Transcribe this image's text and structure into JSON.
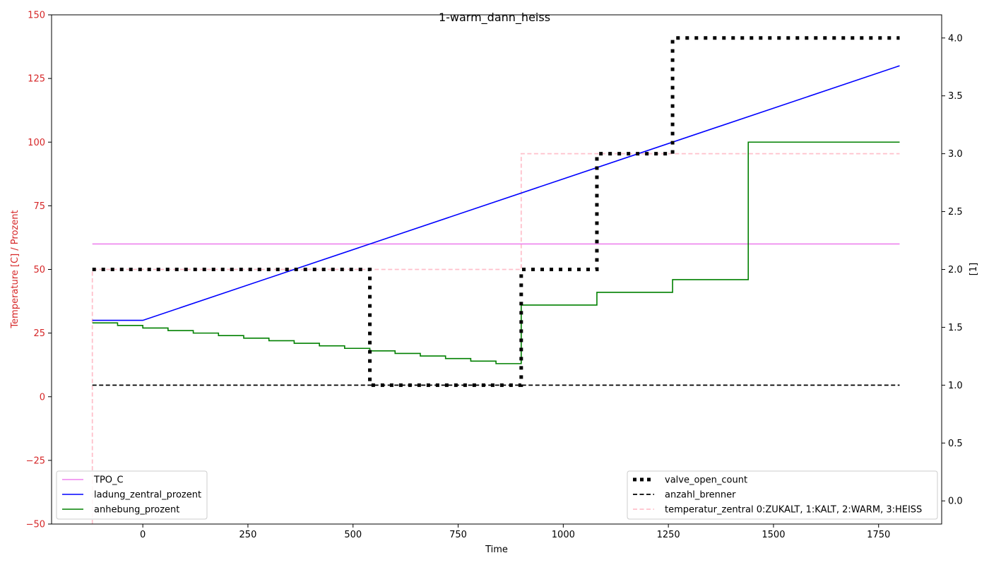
{
  "chart_data": {
    "type": "line",
    "title": "1-warm_dann_heiss",
    "xlabel": "Time",
    "ylabel_left": "Temperature [C] / Prozent",
    "ylabel_right": "[1]",
    "xlim": [
      -217,
      1900
    ],
    "ylim_left": [
      -50,
      150
    ],
    "ylim_right": [
      -0.2,
      4.2
    ],
    "xticks": [
      0,
      250,
      500,
      750,
      1000,
      1250,
      1500,
      1750
    ],
    "yticks_left": [
      -50,
      -25,
      0,
      25,
      50,
      75,
      100,
      125,
      150
    ],
    "yticks_right": [
      0.0,
      0.5,
      1.0,
      1.5,
      2.0,
      2.5,
      3.0,
      3.5,
      4.0
    ],
    "grid": false,
    "left_axis_color": "#d62728",
    "legend_left_placement": "lower left",
    "legend_right_placement": "lower right",
    "series_left": [
      {
        "name": "TPO_C",
        "color": "#ee82ee",
        "style": "solid",
        "x": [
          -120,
          1800
        ],
        "y": [
          60,
          60
        ]
      },
      {
        "name": "ladung_zentral_prozent",
        "color": "#0000ff",
        "style": "solid",
        "x": [
          -120,
          0,
          1800
        ],
        "y": [
          30,
          30,
          130
        ]
      },
      {
        "name": "anhebung_prozent",
        "color": "#008000",
        "style": "steps",
        "x": [
          -120,
          -60,
          0,
          60,
          120,
          180,
          240,
          300,
          360,
          420,
          480,
          540,
          600,
          660,
          720,
          780,
          840,
          900,
          1080,
          1260,
          1440,
          1800
        ],
        "y": [
          29,
          28,
          27,
          26,
          25,
          24,
          23,
          22,
          21,
          20,
          19,
          18,
          17,
          16,
          15,
          14,
          13,
          36,
          41,
          46,
          100,
          100
        ]
      }
    ],
    "series_right": [
      {
        "name": "valve_open_count",
        "color": "#000000",
        "style": "dotted",
        "x": [
          -120,
          540,
          900,
          1080,
          1260,
          1800
        ],
        "y": [
          2,
          1,
          2,
          3,
          4,
          4
        ]
      },
      {
        "name": "anzahl_brenner",
        "color": "#000000",
        "style": "dashed",
        "x": [
          -120,
          1800
        ],
        "y": [
          1,
          1
        ]
      },
      {
        "name": "temperatur_zentral 0:ZUKALT, 1:KALT, 2:WARM, 3:HEISS",
        "color": "#ffc0cb",
        "style": "dashed",
        "x": [
          -120,
          -120,
          900,
          1800
        ],
        "y": [
          -0.2,
          2,
          3,
          3
        ]
      }
    ]
  }
}
